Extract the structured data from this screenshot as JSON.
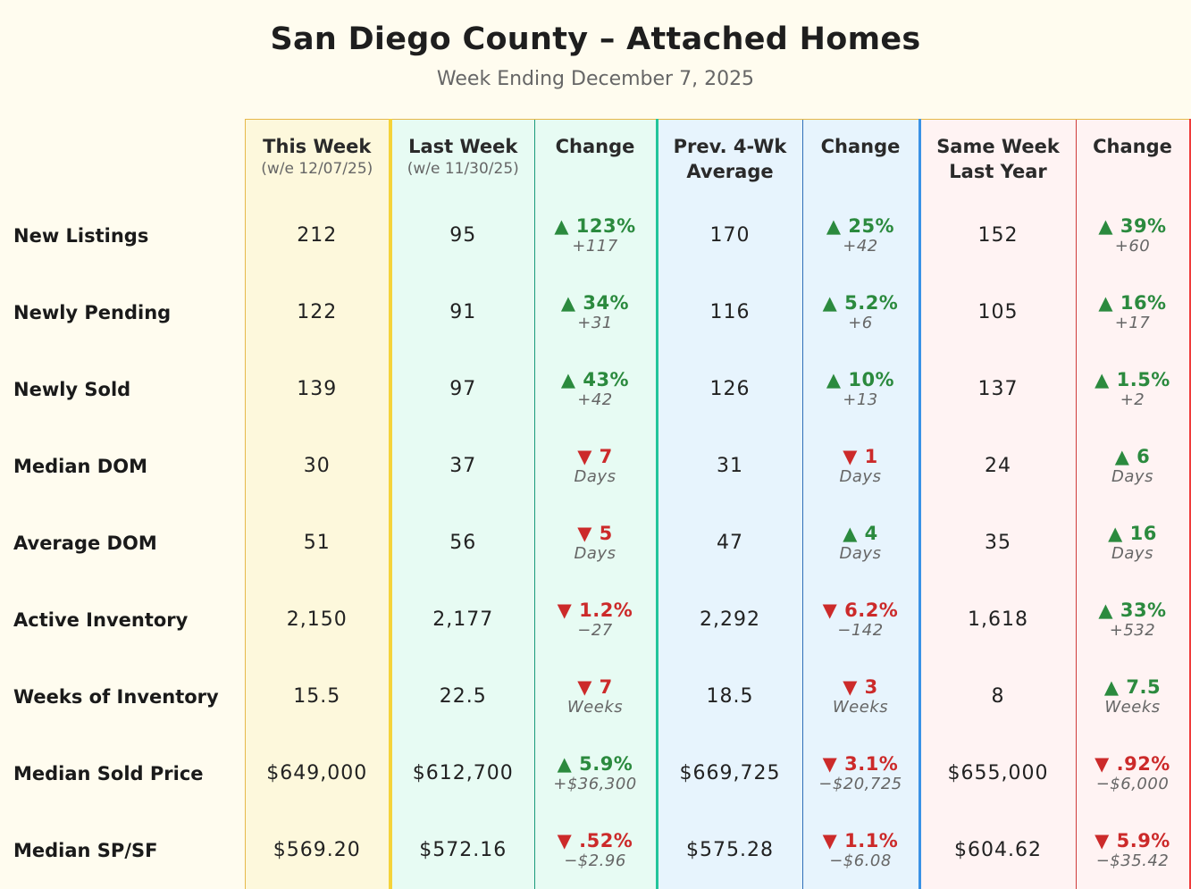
{
  "title": "San Diego County – Attached Homes",
  "subtitle": "Week Ending December 7, 2025",
  "colors": {
    "up": "#2b8a3e",
    "down": "#cc2a2a",
    "this_week": "#f5d33a",
    "last_week": "#22c59a",
    "avg": "#3a92e6",
    "last_year": "#ef3b3b"
  },
  "columns": [
    {
      "title": "This Week",
      "sub": "(w/e 12/07/25)"
    },
    {
      "title": "Last Week",
      "sub": "(w/e 11/30/25)"
    },
    {
      "title": "Change",
      "sub": ""
    },
    {
      "title": "Prev. 4-Wk Average",
      "sub": ""
    },
    {
      "title": "Change",
      "sub": ""
    },
    {
      "title": "Same Week Last Year",
      "sub": ""
    },
    {
      "title": "Change",
      "sub": ""
    }
  ],
  "rows": [
    {
      "label": "New Listings",
      "this_week": "212",
      "last_week": "95",
      "chg1": {
        "dir": "up",
        "pct": "▲ 123%",
        "diff": "+117"
      },
      "avg4": "170",
      "chg2": {
        "dir": "up",
        "pct": "▲ 25%",
        "diff": "+42"
      },
      "last_year": "152",
      "chg3": {
        "dir": "up",
        "pct": "▲ 39%",
        "diff": "+60"
      }
    },
    {
      "label": "Newly Pending",
      "this_week": "122",
      "last_week": "91",
      "chg1": {
        "dir": "up",
        "pct": "▲ 34%",
        "diff": "+31"
      },
      "avg4": "116",
      "chg2": {
        "dir": "up",
        "pct": "▲ 5.2%",
        "diff": "+6"
      },
      "last_year": "105",
      "chg3": {
        "dir": "up",
        "pct": "▲ 16%",
        "diff": "+17"
      }
    },
    {
      "label": "Newly Sold",
      "this_week": "139",
      "last_week": "97",
      "chg1": {
        "dir": "up",
        "pct": "▲ 43%",
        "diff": "+42"
      },
      "avg4": "126",
      "chg2": {
        "dir": "up",
        "pct": "▲ 10%",
        "diff": "+13"
      },
      "last_year": "137",
      "chg3": {
        "dir": "up",
        "pct": "▲ 1.5%",
        "diff": "+2"
      }
    },
    {
      "label": "Median DOM",
      "this_week": "30",
      "last_week": "37",
      "chg1": {
        "dir": "down",
        "pct": "▼ 7",
        "diff": "Days"
      },
      "avg4": "31",
      "chg2": {
        "dir": "down",
        "pct": "▼ 1",
        "diff": "Days"
      },
      "last_year": "24",
      "chg3": {
        "dir": "up",
        "pct": "▲ 6",
        "diff": "Days"
      }
    },
    {
      "label": "Average DOM",
      "this_week": "51",
      "last_week": "56",
      "chg1": {
        "dir": "down",
        "pct": "▼ 5",
        "diff": "Days"
      },
      "avg4": "47",
      "chg2": {
        "dir": "up",
        "pct": "▲ 4",
        "diff": "Days"
      },
      "last_year": "35",
      "chg3": {
        "dir": "up",
        "pct": "▲ 16",
        "diff": "Days"
      }
    },
    {
      "label": "Active Inventory",
      "this_week": "2,150",
      "last_week": "2,177",
      "chg1": {
        "dir": "down",
        "pct": "▼ 1.2%",
        "diff": "−27"
      },
      "avg4": "2,292",
      "chg2": {
        "dir": "down",
        "pct": "▼ 6.2%",
        "diff": "−142"
      },
      "last_year": "1,618",
      "chg3": {
        "dir": "up",
        "pct": "▲ 33%",
        "diff": "+532"
      }
    },
    {
      "label": "Weeks of Inventory",
      "this_week": "15.5",
      "last_week": "22.5",
      "chg1": {
        "dir": "down",
        "pct": "▼ 7",
        "diff": "Weeks"
      },
      "avg4": "18.5",
      "chg2": {
        "dir": "down",
        "pct": "▼ 3",
        "diff": "Weeks"
      },
      "last_year": "8",
      "chg3": {
        "dir": "up",
        "pct": "▲ 7.5",
        "diff": "Weeks"
      }
    },
    {
      "label": "Median Sold Price",
      "this_week": "$649,000",
      "last_week": "$612,700",
      "chg1": {
        "dir": "up",
        "pct": "▲ 5.9%",
        "diff": "+$36,300"
      },
      "avg4": "$669,725",
      "chg2": {
        "dir": "down",
        "pct": "▼ 3.1%",
        "diff": "−$20,725"
      },
      "last_year": "$655,000",
      "chg3": {
        "dir": "down",
        "pct": "▼ .92%",
        "diff": "−$6,000"
      }
    },
    {
      "label": "Median SP/SF",
      "this_week": "$569.20",
      "last_week": "$572.16",
      "chg1": {
        "dir": "down",
        "pct": "▼ .52%",
        "diff": "−$2.96"
      },
      "avg4": "$575.28",
      "chg2": {
        "dir": "down",
        "pct": "▼ 1.1%",
        "diff": "−$6.08"
      },
      "last_year": "$604.62",
      "chg3": {
        "dir": "down",
        "pct": "▼ 5.9%",
        "diff": "−$35.42"
      }
    }
  ]
}
